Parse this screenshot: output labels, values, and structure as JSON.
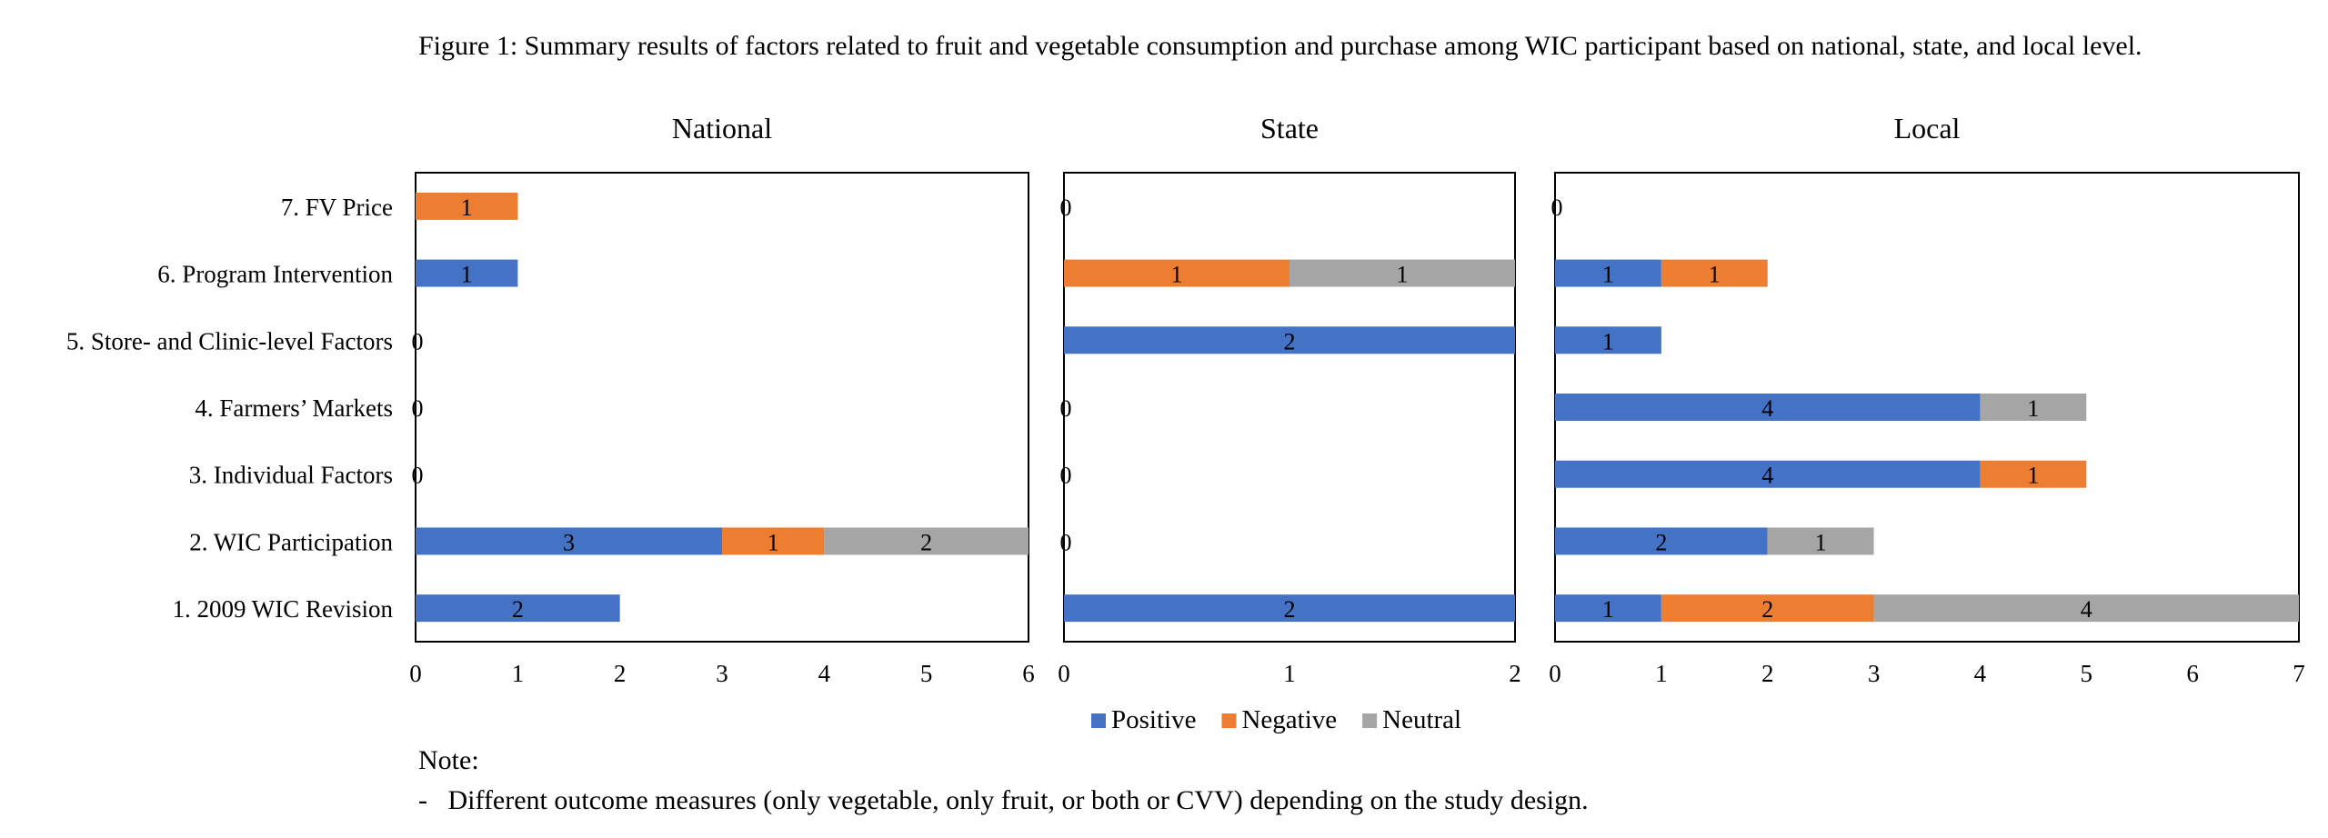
{
  "figure_title": "Figure 1: Summary results of factors related to fruit and vegetable consumption and purchase among WIC participant based on national, state, and local level.",
  "colors": {
    "Positive": "#4472C4",
    "Negative": "#ED7D31",
    "Neutral": "#A5A5A5"
  },
  "chart_data": {
    "type": "bar",
    "orientation": "horizontal",
    "stacked": true,
    "categories": [
      "1. 2009 WIC Revision",
      "2. WIC Participation",
      "3. Individual Factors",
      "4. Farmers’ Markets",
      "5. Store- and Clinic-level Factors",
      "6. Program Intervention",
      "7. FV Price"
    ],
    "legend": [
      "Positive",
      "Negative",
      "Neutral"
    ],
    "legend_position": "bottom",
    "grid": false,
    "panels": [
      {
        "title": "National",
        "xlim": [
          0,
          6
        ],
        "ticks": [
          "0",
          "1",
          "2",
          "3",
          "4",
          "5",
          "6"
        ],
        "series": [
          {
            "name": "Positive",
            "values": [
              2,
              3,
              0,
              0,
              0,
              1,
              0
            ]
          },
          {
            "name": "Negative",
            "values": [
              0,
              1,
              0,
              0,
              0,
              0,
              1
            ]
          },
          {
            "name": "Neutral",
            "values": [
              0,
              2,
              0,
              0,
              0,
              0,
              0
            ]
          }
        ]
      },
      {
        "title": "State",
        "xlim": [
          0,
          2
        ],
        "ticks": [
          "0",
          "1",
          "2"
        ],
        "series": [
          {
            "name": "Positive",
            "values": [
              2,
              0,
              0,
              0,
              2,
              0,
              0
            ]
          },
          {
            "name": "Negative",
            "values": [
              0,
              0,
              0,
              0,
              0,
              1,
              0
            ]
          },
          {
            "name": "Neutral",
            "values": [
              0,
              0,
              0,
              0,
              0,
              1,
              0
            ]
          }
        ]
      },
      {
        "title": "Local",
        "xlim": [
          0,
          7
        ],
        "ticks": [
          "0",
          "1",
          "2",
          "3",
          "4",
          "5",
          "6",
          "7"
        ],
        "series": [
          {
            "name": "Positive",
            "values": [
              1,
              2,
              4,
              4,
              1,
              1,
              0
            ]
          },
          {
            "name": "Negative",
            "values": [
              2,
              0,
              1,
              0,
              0,
              1,
              0
            ]
          },
          {
            "name": "Neutral",
            "values": [
              4,
              1,
              0,
              1,
              0,
              0,
              0
            ]
          }
        ]
      }
    ]
  },
  "note": {
    "heading": "Note:",
    "items": [
      "-   Different outcome measures (only vegetable, only fruit, or both or CVV) depending on the study design."
    ]
  }
}
